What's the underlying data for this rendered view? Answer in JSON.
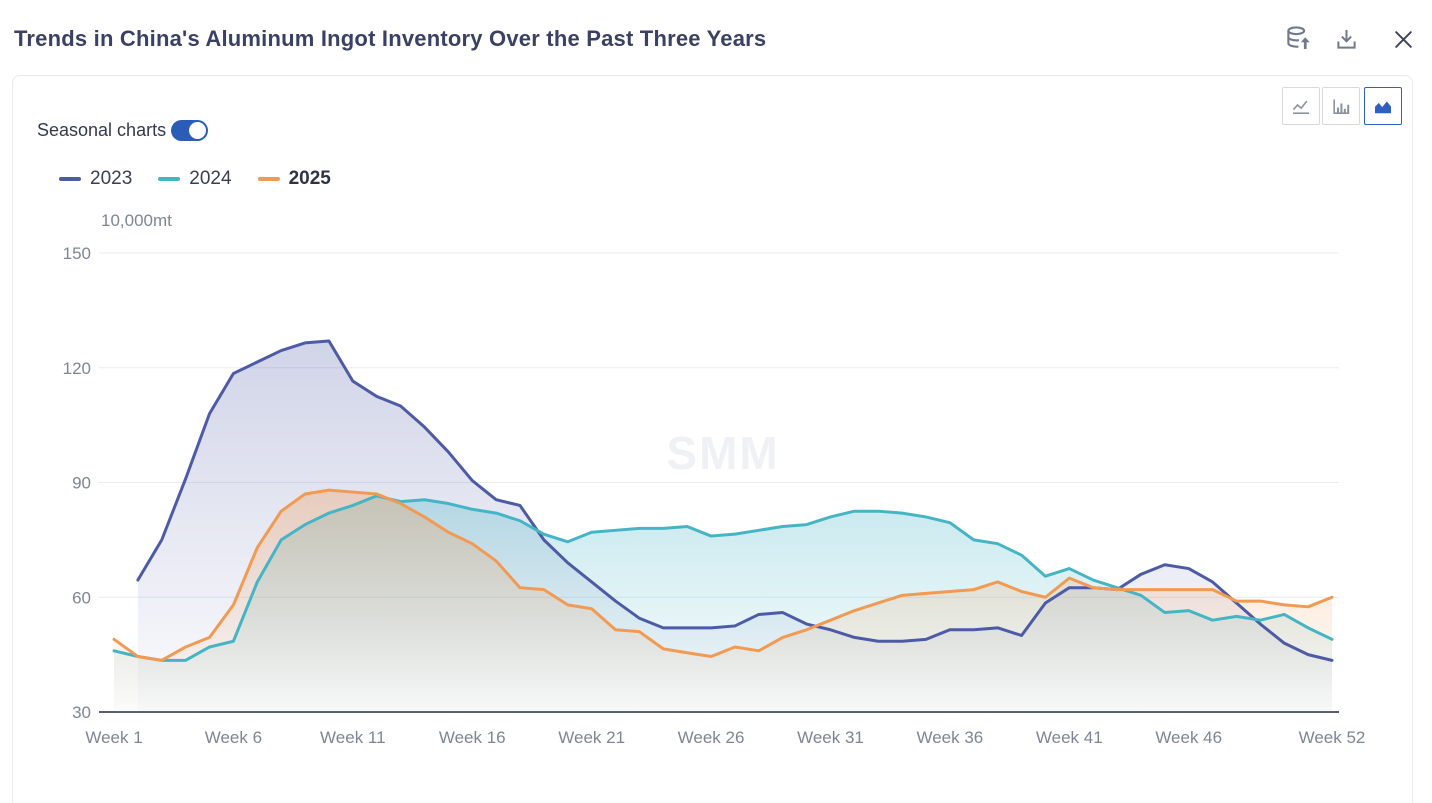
{
  "header": {
    "title": "Trends in China's Aluminum Ingot Inventory Over the Past Three Years",
    "actions": [
      {
        "id": "export-data",
        "icon": "database-upload-icon"
      },
      {
        "id": "download",
        "icon": "download-icon"
      },
      {
        "id": "close",
        "icon": "close-icon"
      }
    ]
  },
  "panel": {
    "seasonal_toggle": {
      "label": "Seasonal charts",
      "state": "on"
    },
    "chart_type_switcher": [
      {
        "id": "line",
        "icon": "line-chart-icon",
        "active": false
      },
      {
        "id": "bar",
        "icon": "bar-chart-icon",
        "active": false
      },
      {
        "id": "area",
        "icon": "area-chart-icon",
        "active": true
      }
    ]
  },
  "colors": {
    "title_text": "#3b4164",
    "toggle_on": "#2b5cb7",
    "active_button": "#2f5fc0",
    "inactive_button_icon": "#8b929e",
    "icon_gray": "#717a8c",
    "close_icon": "#3f4557",
    "card_border": "#e8e9ef",
    "axis_label": "#7f8596",
    "gridline": "#e9ebf3",
    "axis_line": "#5b5f68",
    "watermark_color": "#f0f1f5"
  },
  "chart_data": {
    "type": "area",
    "title": "Trends in China's Aluminum Ingot Inventory Over the Past Three Years",
    "unit_label": "10,000mt",
    "watermark": "SMM",
    "legend_position": "top-left",
    "gridlines": "horizontal",
    "x_axis": {
      "weeks": 52,
      "category_format": "Week N (N = 1..52)",
      "tick_weeks": [
        1,
        6,
        11,
        16,
        21,
        26,
        31,
        36,
        41,
        46,
        52
      ],
      "tick_labels": [
        "Week 1",
        "Week 6",
        "Week 11",
        "Week 16",
        "Week 21",
        "Week 26",
        "Week 31",
        "Week 36",
        "Week 41",
        "Week 46",
        "Week 52"
      ]
    },
    "y_axis": {
      "ticks": [
        30,
        60,
        90,
        120,
        150
      ],
      "range": [
        30,
        150
      ]
    },
    "series": [
      {
        "name": "2023",
        "color": "#4d5ba6",
        "legend_bold": false,
        "values": [
          null,
          64.5,
          75,
          91,
          108,
          118.5,
          121.5,
          124.5,
          126.5,
          127,
          116.5,
          112.5,
          110,
          104.5,
          98,
          90.5,
          85.5,
          84,
          75,
          69,
          64,
          59,
          54.5,
          52,
          52,
          52,
          52.5,
          55.5,
          56,
          53,
          51.5,
          49.5,
          48.5,
          48.5,
          49,
          51.5,
          51.5,
          52,
          50,
          58.5,
          62.5,
          62.5,
          62,
          66,
          68.5,
          67.5,
          64,
          58.5,
          53,
          48,
          45,
          43.5
        ]
      },
      {
        "name": "2024",
        "color": "#45b5c6",
        "legend_bold": false,
        "values": [
          46,
          44.5,
          43.5,
          43.5,
          47,
          48.5,
          64,
          75,
          79,
          82,
          84,
          86.5,
          85,
          85.5,
          84.5,
          83,
          82,
          80,
          76.5,
          74.5,
          77,
          77.5,
          78,
          78,
          78.5,
          76,
          76.5,
          77.5,
          78.5,
          79,
          81,
          82.5,
          82.5,
          82,
          81,
          79.5,
          75,
          74,
          71,
          65.5,
          67.5,
          64.5,
          62.5,
          60.5,
          56,
          56.5,
          54,
          55,
          54,
          55.5,
          52,
          49
        ]
      },
      {
        "name": "2025",
        "color": "#f29a52",
        "legend_bold": true,
        "values": [
          49,
          44.5,
          43.5,
          47,
          49.5,
          58,
          73,
          82.5,
          87,
          88,
          87.5,
          87,
          84.5,
          81,
          77,
          74,
          69.5,
          62.5,
          62,
          58,
          57,
          51.5,
          51,
          46.5,
          45.5,
          44.5,
          47,
          46,
          49.5,
          51.5,
          54,
          56.5,
          58.5,
          60.5,
          61,
          61.5,
          62,
          64,
          61.5,
          60,
          65,
          62.5,
          62,
          62,
          62,
          62,
          62,
          59,
          59,
          58,
          57.5,
          60
        ]
      }
    ]
  }
}
